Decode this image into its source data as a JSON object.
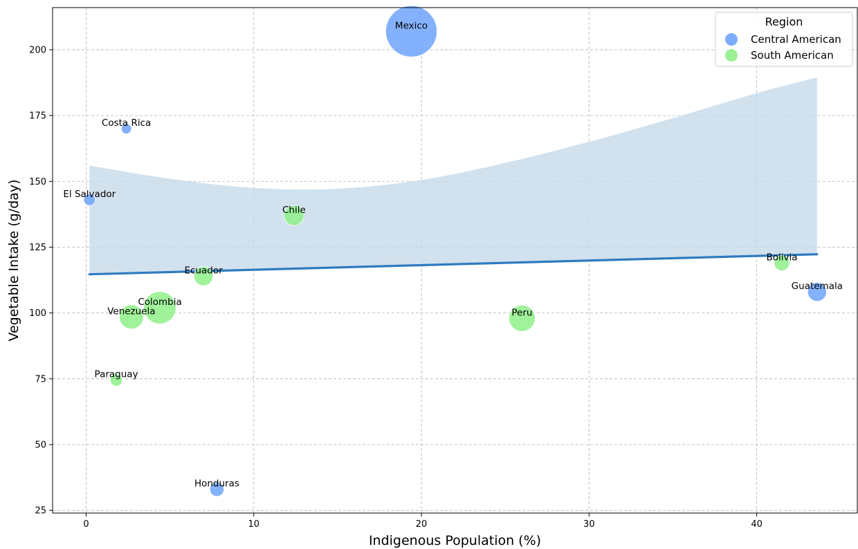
{
  "chart_data": {
    "type": "scatter",
    "title": "",
    "xlabel": "Indigenous Population (%)",
    "ylabel": "Vegetable Intake (g/day)",
    "xlim": [
      -2,
      46
    ],
    "ylim": [
      24,
      216
    ],
    "xticks": [
      0,
      10,
      20,
      30,
      40
    ],
    "yticks": [
      25,
      50,
      75,
      100,
      125,
      150,
      175,
      200
    ],
    "grid": true,
    "legend": {
      "title": "Region",
      "placement": "top-right",
      "entries": [
        {
          "name": "Central American",
          "color": "#6fa3fb"
        },
        {
          "name": "South American",
          "color": "#8ff08a"
        }
      ]
    },
    "series": [
      {
        "name": "Central American",
        "color": "#6fa3fb",
        "points": [
          {
            "label": "Mexico",
            "x": 19.4,
            "y": 207,
            "size": 126
          },
          {
            "label": "Guatemala",
            "x": 43.6,
            "y": 108,
            "size": 17
          },
          {
            "label": "Costa Rica",
            "x": 2.4,
            "y": 170,
            "size": 5
          },
          {
            "label": "El Salvador",
            "x": 0.2,
            "y": 143,
            "size": 6.5
          },
          {
            "label": "Honduras",
            "x": 7.8,
            "y": 33,
            "size": 9.5
          }
        ]
      },
      {
        "name": "South American",
        "color": "#8ff08a",
        "points": [
          {
            "label": "Chile",
            "x": 12.4,
            "y": 137,
            "size": 19
          },
          {
            "label": "Bolivia",
            "x": 41.5,
            "y": 119,
            "size": 11.5
          },
          {
            "label": "Ecuador",
            "x": 7.0,
            "y": 114,
            "size": 17.5
          },
          {
            "label": "Colombia",
            "x": 4.4,
            "y": 102,
            "size": 50
          },
          {
            "label": "Venezuela",
            "x": 2.7,
            "y": 98.5,
            "size": 28
          },
          {
            "label": "Peru",
            "x": 26.0,
            "y": 98,
            "size": 33
          },
          {
            "label": "Paraguay",
            "x": 1.8,
            "y": 74.5,
            "size": 7
          }
        ]
      }
    ],
    "regression": {
      "color": "#2f7bbf",
      "band_color": "#c5daea",
      "x_range": [
        0.2,
        43.6
      ],
      "line": [
        [
          0.2,
          114.7
        ],
        [
          43.6,
          122.3
        ]
      ],
      "ci_upper": [
        [
          0.2,
          156
        ],
        [
          5,
          151
        ],
        [
          10,
          147.5
        ],
        [
          15,
          147.2
        ],
        [
          20,
          150.5
        ],
        [
          25,
          157
        ],
        [
          30,
          165
        ],
        [
          35,
          174
        ],
        [
          40,
          183.5
        ],
        [
          43.6,
          189.5
        ]
      ],
      "ci_lower": [
        [
          0.2,
          114.7
        ],
        [
          43.6,
          122.3
        ]
      ]
    }
  }
}
